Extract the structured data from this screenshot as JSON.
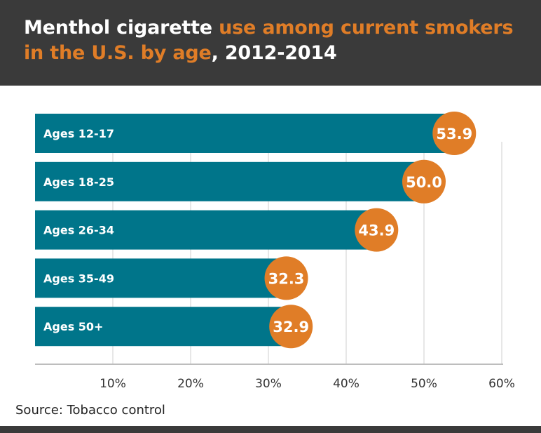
{
  "title": {
    "part1": "Menthol cigarette ",
    "highlight": "use among current smokers in the U.S. by age",
    "part2": ", 2012-2014"
  },
  "source": "Source: Tobacco control",
  "colors": {
    "bar": "#00758a",
    "marker": "#e07d27",
    "header": "#3a3a3a",
    "grid": "#cfcfcf"
  },
  "chart_data": {
    "type": "bar",
    "orientation": "horizontal",
    "title": "Menthol cigarette use among current smokers in the U.S. by age, 2012-2014",
    "categories": [
      "Ages 12-17",
      "Ages 18-25",
      "Ages 26-34",
      "Ages 35-49",
      "Ages 50+"
    ],
    "values": [
      53.9,
      50.0,
      43.9,
      32.3,
      32.9
    ],
    "value_labels": [
      "53.9",
      "50.0",
      "43.9",
      "32.3",
      "32.9"
    ],
    "xlim": [
      0,
      60
    ],
    "xticks": [
      10,
      20,
      30,
      40,
      50,
      60
    ],
    "xtick_labels": [
      "10%",
      "20%",
      "30%",
      "40%",
      "50%",
      "60%"
    ],
    "grid": true
  }
}
